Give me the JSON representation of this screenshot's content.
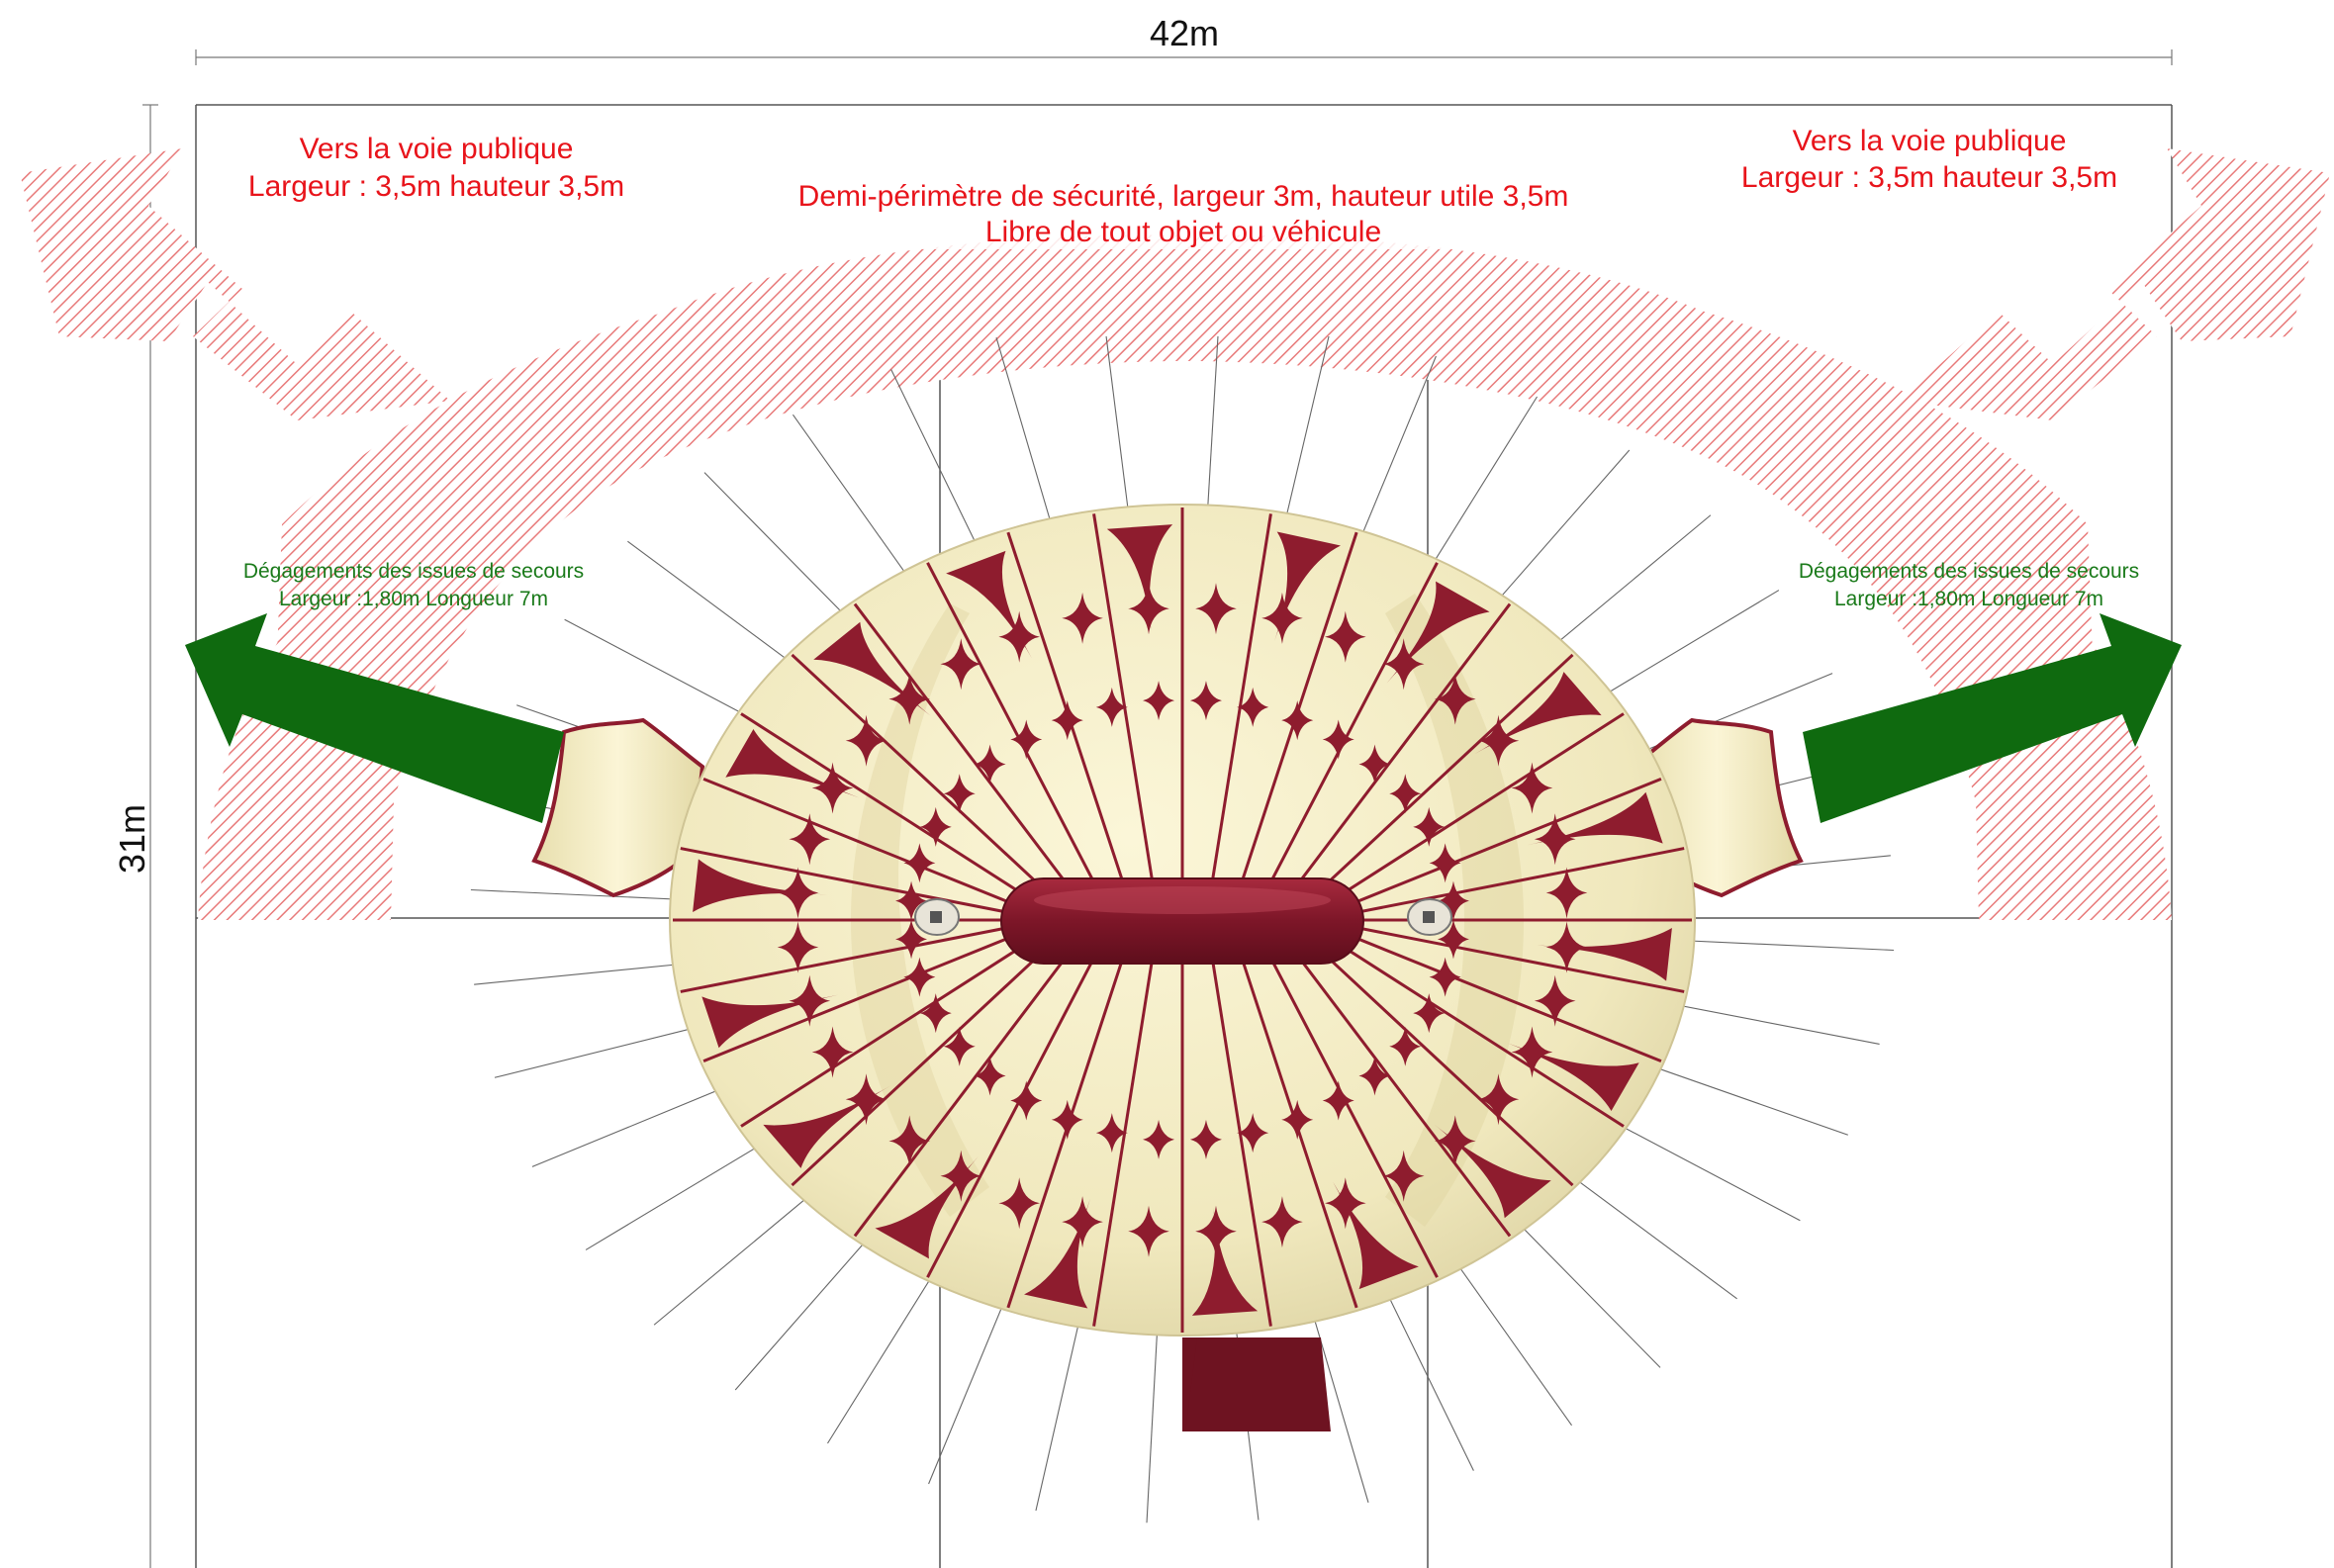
{
  "dimensions": {
    "width_label": "42m",
    "height_label": "31m"
  },
  "public_road": {
    "left": {
      "line1": "Vers la voie publique",
      "line2": "Largeur : 3,5m hauteur 3,5m"
    },
    "right": {
      "line1": "Vers la voie publique",
      "line2": "Largeur : 3,5m hauteur 3,5m"
    }
  },
  "security_perimeter": {
    "line1": "Demi-périmètre de sécurité, largeur  3m, hauteur utile 3,5m",
    "line2": "Libre de tout objet ou véhicule"
  },
  "emergency_exits": {
    "left": {
      "line1": "Dégagements des issues de secours",
      "line2": "Largeur :1,80m Longueur 7m"
    },
    "right": {
      "line1": "Dégagements des issues de secours",
      "line2": "Largeur :1,80m Longueur 7m"
    }
  },
  "colors": {
    "road_text": "#e8141b",
    "exit_text": "#1a7a1a",
    "exit_arrow": "#0f6a0f",
    "tent_canvas": "#f2ecc2",
    "tent_pattern": "#8e1c2e",
    "perimeter_hatch": "#e87a7a",
    "line": "#555555"
  },
  "icons": {
    "road_arrow": "curved-arrow",
    "exit_arrow": "straight-arrow",
    "tent": "circus-tent"
  }
}
